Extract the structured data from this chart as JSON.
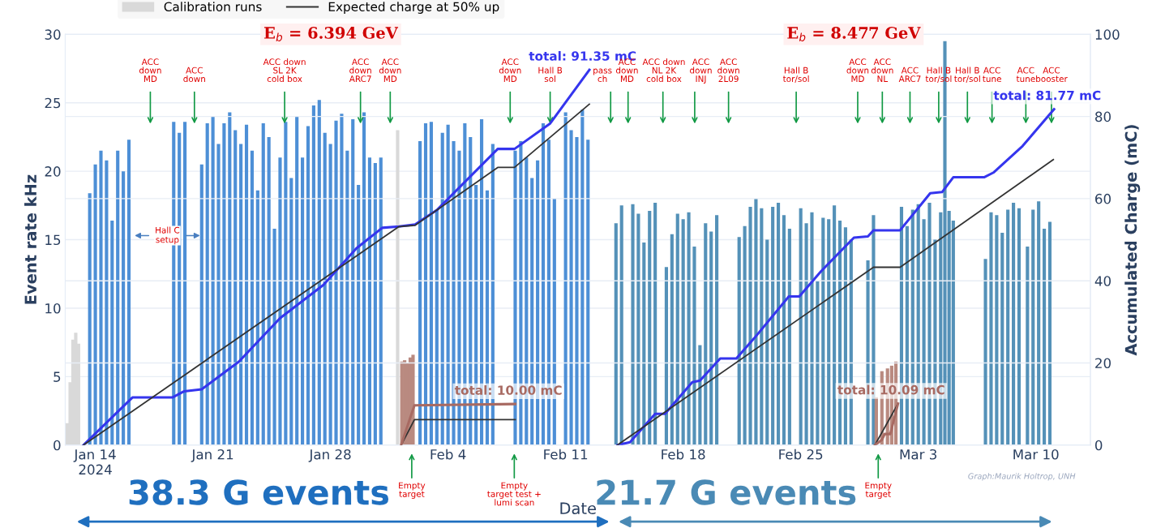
{
  "chart_data": {
    "type": "bar",
    "xlabel": "Date",
    "ylabel": "Event rate kHz",
    "y2label": "Accumulated Charge (mC)",
    "xlim": [
      "2024-01-12T05:00",
      "2024-03-13T06:00"
    ],
    "xticks": [
      {
        "value": "2024-01-14",
        "label": "Jan 14\n2024"
      },
      {
        "value": "2024-01-21",
        "label": "Jan 21"
      },
      {
        "value": "2024-01-28",
        "label": "Jan 28"
      },
      {
        "value": "2024-02-04",
        "label": "Feb 4"
      },
      {
        "value": "2024-02-11",
        "label": "Feb 11"
      },
      {
        "value": "2024-02-18",
        "label": "Feb 18"
      },
      {
        "value": "2024-02-25",
        "label": "Feb 25"
      },
      {
        "value": "2024-03-03",
        "label": "Mar 3"
      },
      {
        "value": "2024-03-10",
        "label": "Mar 10"
      }
    ],
    "ylim": [
      0,
      30
    ],
    "yticks": [
      0,
      5,
      10,
      15,
      20,
      25,
      30
    ],
    "y2lim": [
      0,
      100
    ],
    "y2ticks": [
      0,
      20,
      40,
      60,
      80,
      100
    ],
    "grid": "y",
    "legend": "top left",
    "series": [
      {
        "color": "#4d8fd6",
        "x": [
          "2024-01-13T16:00",
          "2024-01-14T00:00",
          "2024-01-14T08:00",
          "2024-01-14T16:00",
          "2024-01-15T00:00",
          "2024-01-15T08:00",
          "2024-01-15T16:00",
          "2024-01-16T00:00",
          "2024-01-18T16:00",
          "2024-01-19T00:00",
          "2024-01-19T08:00",
          "2024-01-20T08:00",
          "2024-01-20T16:00",
          "2024-01-21T00:00",
          "2024-01-21T08:00",
          "2024-01-21T16:00",
          "2024-01-22T00:00",
          "2024-01-22T08:00",
          "2024-01-22T16:00",
          "2024-01-23T00:00",
          "2024-01-23T08:00",
          "2024-01-23T16:00",
          "2024-01-24T00:00",
          "2024-01-24T08:00",
          "2024-01-24T16:00",
          "2024-01-25T00:00",
          "2024-01-25T08:00",
          "2024-01-25T16:00",
          "2024-01-26T00:00",
          "2024-01-26T08:00",
          "2024-01-26T16:00",
          "2024-01-27T00:00",
          "2024-01-27T08:00",
          "2024-01-27T16:00",
          "2024-01-28T00:00",
          "2024-01-28T08:00",
          "2024-01-28T16:00",
          "2024-01-29T00:00",
          "2024-01-29T08:00",
          "2024-01-29T16:00",
          "2024-01-30T00:00",
          "2024-01-30T08:00",
          "2024-01-30T16:00",
          "2024-01-31T00:00",
          "2024-02-02T08:00",
          "2024-02-02T16:00",
          "2024-02-03T00:00",
          "2024-02-03T08:00",
          "2024-02-03T16:00",
          "2024-02-04T00:00",
          "2024-02-04T08:00",
          "2024-02-04T16:00",
          "2024-02-05T00:00",
          "2024-02-05T08:00",
          "2024-02-05T16:00",
          "2024-02-06T00:00",
          "2024-02-06T08:00",
          "2024-02-06T16:00",
          "2024-02-08T00:00",
          "2024-02-08T08:00",
          "2024-02-08T16:00",
          "2024-02-09T00:00",
          "2024-02-09T08:00",
          "2024-02-09T16:00",
          "2024-02-10T00:00",
          "2024-02-10T08:00",
          "2024-02-11T00:00",
          "2024-02-11T08:00",
          "2024-02-11T16:00",
          "2024-02-12T00:00",
          "2024-02-12T08:00"
        ],
        "values": [
          18.4,
          20.5,
          21.5,
          20.8,
          16.4,
          21.5,
          20.0,
          22.3,
          23.6,
          22.8,
          23.6,
          20.5,
          23.5,
          24.0,
          22.0,
          23.5,
          24.3,
          23.0,
          22.0,
          23.4,
          21.5,
          18.6,
          23.5,
          22.5,
          15.8,
          21.0,
          23.6,
          19.5,
          24.0,
          21.0,
          23.3,
          24.8,
          25.2,
          22.8,
          22.0,
          23.7,
          24.2,
          21.5,
          23.8,
          19.0,
          24.3,
          21.0,
          20.6,
          21.0,
          22.2,
          23.5,
          23.6,
          17.2,
          22.8,
          23.4,
          22.2,
          21.5,
          23.5,
          22.5,
          19.0,
          23.8,
          18.6,
          22.0,
          21.5,
          22.2,
          21.0,
          19.5,
          20.8,
          23.5,
          22.3,
          18.0,
          24.3,
          23.0,
          22.5,
          24.5,
          22.3
        ]
      },
      {
        "color": "#5491b8",
        "x": [
          "2024-02-14T00:00",
          "2024-02-14T08:00",
          "2024-02-15T00:00",
          "2024-02-15T08:00",
          "2024-02-15T16:00",
          "2024-02-16T00:00",
          "2024-02-16T08:00",
          "2024-02-17T00:00",
          "2024-02-17T08:00",
          "2024-02-17T16:00",
          "2024-02-18T00:00",
          "2024-02-18T08:00",
          "2024-02-18T16:00",
          "2024-02-19T00:00",
          "2024-02-19T08:00",
          "2024-02-19T16:00",
          "2024-02-20T00:00",
          "2024-02-21T08:00",
          "2024-02-21T16:00",
          "2024-02-22T00:00",
          "2024-02-22T08:00",
          "2024-02-22T16:00",
          "2024-02-23T00:00",
          "2024-02-23T08:00",
          "2024-02-23T16:00",
          "2024-02-24T00:00",
          "2024-02-24T08:00",
          "2024-02-25T00:00",
          "2024-02-25T08:00",
          "2024-02-25T16:00",
          "2024-02-26T00:00",
          "2024-02-26T08:00",
          "2024-02-26T16:00",
          "2024-02-27T00:00",
          "2024-02-27T08:00",
          "2024-02-27T16:00",
          "2024-02-28T00:00",
          "2024-02-29T00:00",
          "2024-02-29T08:00",
          "2024-03-02T00:00",
          "2024-03-02T08:00",
          "2024-03-02T16:00",
          "2024-03-03T00:00",
          "2024-03-03T08:00",
          "2024-03-03T16:00",
          "2024-03-04T00:00",
          "2024-03-04T08:00",
          "2024-03-04T14:00",
          "2024-03-04T20:00",
          "2024-03-05T02:00",
          "2024-03-07T00:00",
          "2024-03-07T08:00",
          "2024-03-07T16:00",
          "2024-03-08T00:00",
          "2024-03-08T08:00",
          "2024-03-08T16:00",
          "2024-03-09T00:00",
          "2024-03-09T12:00",
          "2024-03-09T20:00",
          "2024-03-10T04:00",
          "2024-03-10T12:00",
          "2024-03-10T20:00"
        ],
        "values": [
          16.2,
          17.5,
          17.6,
          16.9,
          14.8,
          17.1,
          17.7,
          13.0,
          15.4,
          16.9,
          16.5,
          17.0,
          14.5,
          7.3,
          16.2,
          15.6,
          16.8,
          15.2,
          16.0,
          17.4,
          18.0,
          17.3,
          15.0,
          17.4,
          17.7,
          16.8,
          15.8,
          17.3,
          16.2,
          17.0,
          12.0,
          16.6,
          16.5,
          17.5,
          16.4,
          15.9,
          15.0,
          13.5,
          16.8,
          17.4,
          16.0,
          17.2,
          17.6,
          16.5,
          17.7,
          15.0,
          17.0,
          29.5,
          17.1,
          16.4,
          13.6,
          17.0,
          16.8,
          15.5,
          17.2,
          17.7,
          17.3,
          14.5,
          17.2,
          17.8,
          15.8,
          16.3
        ]
      },
      {
        "name": "Calibration runs",
        "color": "#d9d9d9",
        "x": [
          "2024-01-12T08:00",
          "2024-01-12T12:00",
          "2024-01-12T16:00",
          "2024-01-12T20:00",
          "2024-01-13T00:00",
          "2024-02-01T00:00"
        ],
        "values": [
          1.6,
          4.6,
          7.7,
          8.2,
          7.4,
          23.0
        ]
      },
      {
        "color": "#b98a80",
        "x": [
          "2024-02-01T06:00",
          "2024-02-01T10:00",
          "2024-02-01T14:00",
          "2024-02-01T18:00",
          "2024-02-01T22:00",
          "2024-02-29T12:00",
          "2024-02-29T20:00",
          "2024-03-01T04:00",
          "2024-03-01T10:00",
          "2024-03-01T16:00"
        ],
        "values": [
          6.1,
          6.2,
          6.0,
          6.4,
          6.6,
          3.5,
          5.4,
          5.6,
          5.8,
          6.1
        ]
      },
      {
        "type": "line",
        "axis": "y2",
        "color": "#3535ee",
        "x": [
          "2024-01-13T07:00",
          "2024-01-16T05:00",
          "2024-01-18T14:00",
          "2024-01-19T07:00",
          "2024-01-20T08:00",
          "2024-01-22T13:00",
          "2024-01-25T00:00",
          "2024-01-27T14:00",
          "2024-01-29T13:00",
          "2024-01-31T02:00",
          "2024-02-01T02:00",
          "2024-02-02T01:00",
          "2024-02-03T08:00",
          "2024-02-06T23:00",
          "2024-02-07T23:00",
          "2024-02-10T02:00",
          "2024-02-12T10:00",
          "2024-02-13T00:00",
          "2024-02-14T02:00",
          "2024-02-14T20:00",
          "2024-02-16T08:00",
          "2024-02-16T22:00",
          "2024-02-18T13:00",
          "2024-02-19T00:00",
          "2024-02-20T05:00",
          "2024-02-21T04:00",
          "2024-02-22T06:00",
          "2024-02-24T07:00",
          "2024-02-24T22:00",
          "2024-02-26T05:00",
          "2024-02-28T04:00",
          "2024-02-29T00:00",
          "2024-02-29T08:00",
          "2024-03-01T22:00",
          "2024-03-03T17:00",
          "2024-03-04T10:00",
          "2024-03-05T02:00",
          "2024-03-06T22:00",
          "2024-03-07T12:00",
          "2024-03-09T05:00",
          "2024-03-11T02:00"
        ],
        "values": [
          0,
          11.6,
          11.6,
          13.1,
          13.6,
          20.3,
          30.9,
          39.0,
          47.9,
          52.9,
          53.2,
          53.7,
          57.2,
          72.1,
          72.1,
          78.3,
          91.35,
          null,
          0,
          0.7,
          7.6,
          7.6,
          15.3,
          15.7,
          21.1,
          21.1,
          26.1,
          36.2,
          36.2,
          42.3,
          50.5,
          50.8,
          52.3,
          52.3,
          61.3,
          61.6,
          65.2,
          65.2,
          66.4,
          72.8,
          81.77
        ],
        "value_labels": [
          null,
          null,
          null,
          null,
          null,
          null,
          null,
          null,
          null,
          null,
          null,
          null,
          null,
          null,
          null,
          null,
          "total: 91.35 mC",
          null,
          null,
          null,
          null,
          null,
          null,
          null,
          null,
          null,
          null,
          null,
          null,
          null,
          null,
          null,
          null,
          null,
          null,
          null,
          null,
          null,
          null,
          null,
          "total: 81.77 mC"
        ]
      },
      {
        "type": "line",
        "axis": "y2",
        "name": "Expected charge at 50% up",
        "color": "#333333",
        "x": [
          "2024-01-13T07:00",
          "2024-02-01T02:00",
          "2024-02-02T01:00",
          "2024-02-06T23:00",
          "2024-02-07T23:00",
          "2024-02-12T10:00",
          "2024-02-13T00:00",
          "2024-02-14T02:00",
          "2024-02-29T08:00",
          "2024-03-01T22:00",
          "2024-03-11T01:00",
          "2024-02-20T00:00",
          "2024-02-01T05:00",
          "2024-02-02T00:00",
          "2024-02-08T00:00",
          "2024-02-15T00:00",
          "2024-02-29T10:00",
          "2024-03-01T19:00"
        ],
        "values": [
          0,
          53.2,
          53.5,
          67.6,
          67.6,
          83.0,
          null,
          0,
          43.3,
          43.3,
          69.5,
          null,
          0,
          6.2,
          6.2,
          null,
          0,
          10.1
        ]
      },
      {
        "type": "line",
        "axis": "y2",
        "color": "#a86a62",
        "x": [
          "2024-02-01T05:00",
          "2024-02-02T00:00",
          "2024-02-08T00:00",
          "2024-02-15T00:00",
          "2024-02-29T10:00",
          "2024-02-29T20:00",
          "2024-03-01T00:00",
          "2024-03-01T08:00",
          "2024-03-01T19:00"
        ],
        "values": [
          0,
          9.7,
          10.0,
          null,
          0,
          1.3,
          2.7,
          2.7,
          10.09
        ],
        "value_labels": [
          null,
          null,
          "total: 10.00 mC",
          null,
          null,
          null,
          null,
          null,
          "total: 10.09 mC"
        ]
      }
    ],
    "annotations": [
      "E$_{b}$ = 6.394 GeV",
      "E$_{b}$ = 8.477 GeV",
      "ACC\ndown\nMD",
      "ACC\ndown",
      "ACC down\nSL 2K\ncold box",
      "ACC\ndown\nARC7",
      "ACC\ndown\nMD",
      "ACC\ndown\nMD",
      "Hall B\nsol",
      "pass\nch",
      "ACC\ndown\nMD",
      "ACC down\nNL 2K\ncold box",
      "ACC\ndown\nINJ",
      "ACC\ndown\n2L09",
      "Hall B\ntor/sol",
      "ACC\ndown\nMD",
      "ACC\ndown\nNL",
      "ACC\nARC7",
      "Hall B\ntor/sol",
      "Hall B\ntor/sol",
      "ACC\ntune",
      "ACC\ntune",
      "ACC\nbooster",
      "Hall C\nsetup",
      "Empty\ntarget",
      "Empty\ntarget test +\nlumi scan",
      "Empty\ntarget",
      "38.3 G events",
      "21.7 G events",
      "Graph:Maurik Holtrop, UNH"
    ]
  }
}
